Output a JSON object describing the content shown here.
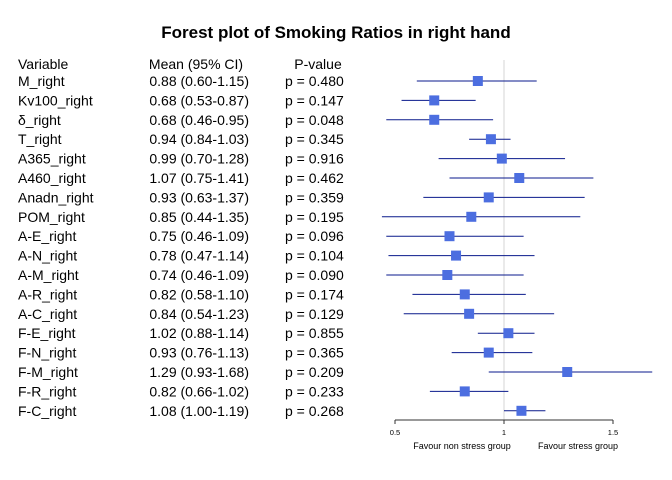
{
  "chart_data": {
    "type": "forest",
    "title": "Forest plot of Smoking Ratios in right hand",
    "columns": [
      "Variable",
      "Mean (95% CI)",
      "P-value"
    ],
    "rows": [
      {
        "variable": "M_right",
        "ci_text": "0.88 (0.60-1.15)",
        "p_text": "p = 0.480",
        "mean": 0.88,
        "low": 0.6,
        "high": 1.15
      },
      {
        "variable": "Kv100_right",
        "ci_text": "0.68 (0.53-0.87)",
        "p_text": "p = 0.147",
        "mean": 0.68,
        "low": 0.53,
        "high": 0.87
      },
      {
        "variable": "δ_right",
        "ci_text": "0.68 (0.46-0.95)",
        "p_text": "p = 0.048",
        "mean": 0.68,
        "low": 0.46,
        "high": 0.95
      },
      {
        "variable": "T_right",
        "ci_text": "0.94 (0.84-1.03)",
        "p_text": "p = 0.345",
        "mean": 0.94,
        "low": 0.84,
        "high": 1.03
      },
      {
        "variable": "A365_right",
        "ci_text": "0.99 (0.70-1.28)",
        "p_text": "p = 0.916",
        "mean": 0.99,
        "low": 0.7,
        "high": 1.28
      },
      {
        "variable": "A460_right",
        "ci_text": "1.07 (0.75-1.41)",
        "p_text": "p = 0.462",
        "mean": 1.07,
        "low": 0.75,
        "high": 1.41
      },
      {
        "variable": "Anadn_right",
        "ci_text": "0.93 (0.63-1.37)",
        "p_text": "p = 0.359",
        "mean": 0.93,
        "low": 0.63,
        "high": 1.37
      },
      {
        "variable": "POM_right",
        "ci_text": "0.85 (0.44-1.35)",
        "p_text": "p = 0.195",
        "mean": 0.85,
        "low": 0.44,
        "high": 1.35
      },
      {
        "variable": "A-E_right",
        "ci_text": "0.75 (0.46-1.09)",
        "p_text": "p = 0.096",
        "mean": 0.75,
        "low": 0.46,
        "high": 1.09
      },
      {
        "variable": "A-N_right",
        "ci_text": "0.78 (0.47-1.14)",
        "p_text": "p = 0.104",
        "mean": 0.78,
        "low": 0.47,
        "high": 1.14
      },
      {
        "variable": "A-M_right",
        "ci_text": "0.74 (0.46-1.09)",
        "p_text": "p = 0.090",
        "mean": 0.74,
        "low": 0.46,
        "high": 1.09
      },
      {
        "variable": "A-R_right",
        "ci_text": "0.82 (0.58-1.10)",
        "p_text": "p = 0.174",
        "mean": 0.82,
        "low": 0.58,
        "high": 1.1
      },
      {
        "variable": "A-C_right",
        "ci_text": "0.84 (0.54-1.23)",
        "p_text": "p = 0.129",
        "mean": 0.84,
        "low": 0.54,
        "high": 1.23
      },
      {
        "variable": "F-E_right",
        "ci_text": "1.02 (0.88-1.14)",
        "p_text": "p = 0.855",
        "mean": 1.02,
        "low": 0.88,
        "high": 1.14
      },
      {
        "variable": "F-N_right",
        "ci_text": "0.93 (0.76-1.13)",
        "p_text": "p = 0.365",
        "mean": 0.93,
        "low": 0.76,
        "high": 1.13
      },
      {
        "variable": "F-M_right",
        "ci_text": "1.29 (0.93-1.68)",
        "p_text": "p = 0.209",
        "mean": 1.29,
        "low": 0.93,
        "high": 1.68
      },
      {
        "variable": "F-R_right",
        "ci_text": "0.82 (0.66-1.02)",
        "p_text": "p = 0.233",
        "mean": 0.82,
        "low": 0.66,
        "high": 1.02
      },
      {
        "variable": "F-C_right",
        "ci_text": "1.08 (1.00-1.19)",
        "p_text": "p = 0.268",
        "mean": 1.08,
        "low": 1.0,
        "high": 1.19
      }
    ],
    "x_ticks": [
      0.5,
      1,
      1.5
    ],
    "x_tick_labels": [
      "0.5",
      "1",
      "1.5"
    ],
    "reference_line": 1,
    "favour_left": "Favour non stress group",
    "favour_right": "Favour stress group",
    "colors": {
      "ci_line": "#0a1a8c",
      "marker": "#4c6ee0",
      "reference": "#d6d6d6",
      "axis": "#333333"
    }
  }
}
